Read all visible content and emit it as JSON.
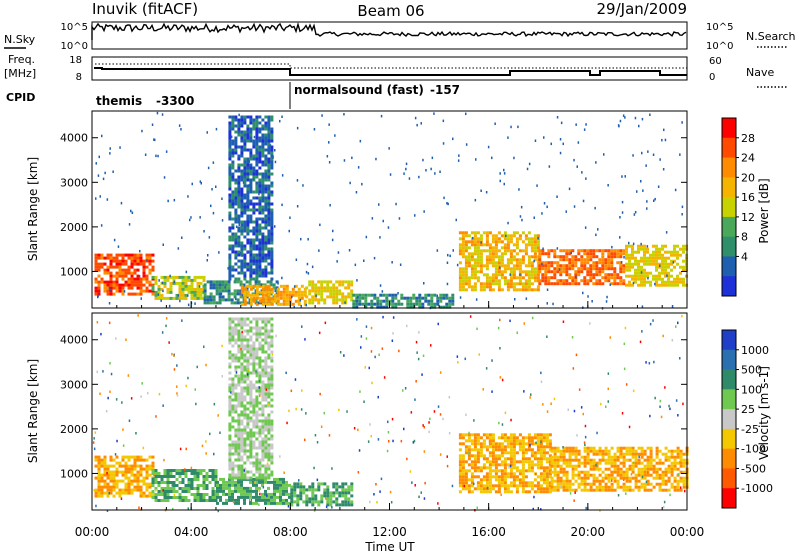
{
  "header": {
    "station": "Inuvik (fitACF)",
    "beam": "Beam 06",
    "date": "29/Jan/2009"
  },
  "noise_panel": {
    "left_label": "N.Sky",
    "right_label": "N.Search",
    "left_ticks": [
      "10^5",
      "10^0"
    ],
    "right_ticks": [
      "10^5",
      "10^0"
    ]
  },
  "freq_panel": {
    "left_label_1": "Freq.",
    "left_label_2": "[MHz]",
    "right_label": "Nave",
    "left_ticks": [
      "18",
      "8"
    ],
    "right_ticks": [
      "60",
      "0"
    ]
  },
  "cpid": {
    "label": "CPID",
    "segments": [
      {
        "name": "themis",
        "id": "-3300",
        "start_hour": 0,
        "end_hour": 8
      },
      {
        "name": "normalsound (fast)",
        "id": "-157",
        "start_hour": 8,
        "end_hour": 24
      }
    ]
  },
  "power_panel": {
    "ylabel": "Slant Range [km]",
    "colorbar_label": "Power [dB]",
    "colorbar_ticks": [
      "28",
      "24",
      "20",
      "16",
      "12",
      "8",
      "4"
    ],
    "colorbar_colors": [
      "#ff0000",
      "#ff4a00",
      "#ff8c00",
      "#f4b400",
      "#c8d200",
      "#4aa85a",
      "#2f8f6a",
      "#1f5fb0",
      "#1e30d8"
    ]
  },
  "velocity_panel": {
    "ylabel": "Slant Range [km]",
    "colorbar_label": "Velocity [m s-1]",
    "colorbar_ticks": [
      "1000",
      "500",
      "100",
      "25",
      "-25",
      "-100",
      "-500",
      "-1000"
    ],
    "colorbar_colors": [
      "#1f3fc8",
      "#2a6fb0",
      "#2f8a6a",
      "#6fc850",
      "#c8c8c8",
      "#f4c800",
      "#ff8c00",
      "#ff5a00",
      "#ff0000"
    ]
  },
  "time_axis": {
    "xlabel": "Time UT",
    "ticks": [
      "00:00",
      "04:00",
      "08:00",
      "12:00",
      "16:00",
      "20:00",
      "00:00"
    ]
  },
  "chart_data": [
    {
      "type": "heatmap",
      "title": "Power",
      "xlabel": "Time UT",
      "ylabel": "Slant Range [km]",
      "xlim_hours": [
        0,
        24
      ],
      "ylim_km": [
        180,
        4600
      ],
      "yticks": [
        1000,
        2000,
        3000,
        4000
      ],
      "colorbar": {
        "label": "Power [dB]",
        "range": [
          0,
          32
        ],
        "ticks": [
          4,
          8,
          12,
          16,
          20,
          24,
          28
        ]
      },
      "regions": [
        {
          "t0": 0.1,
          "t1": 2.4,
          "r0": 500,
          "r1": 1400,
          "level": 28
        },
        {
          "t0": 2.4,
          "t1": 4.5,
          "r0": 400,
          "r1": 900,
          "level": 16
        },
        {
          "t0": 4.5,
          "t1": 7.5,
          "r0": 300,
          "r1": 800,
          "level": 8
        },
        {
          "t0": 5.5,
          "t1": 7.2,
          "r0": 800,
          "r1": 4500,
          "level": 4
        },
        {
          "t0": 6.0,
          "t1": 8.6,
          "r0": 250,
          "r1": 700,
          "level": 22
        },
        {
          "t0": 8.6,
          "t1": 10.5,
          "r0": 300,
          "r1": 800,
          "level": 18
        },
        {
          "t0": 10.5,
          "t1": 14.5,
          "r0": 200,
          "r1": 500,
          "level": 8
        },
        {
          "t0": 14.8,
          "t1": 18.0,
          "r0": 600,
          "r1": 1900,
          "level": 20
        },
        {
          "t0": 18.0,
          "t1": 21.5,
          "r0": 700,
          "r1": 1500,
          "level": 26
        },
        {
          "t0": 21.5,
          "t1": 24.0,
          "r0": 700,
          "r1": 1600,
          "level": 18
        }
      ]
    },
    {
      "type": "heatmap",
      "title": "Velocity",
      "xlabel": "Time UT",
      "ylabel": "Slant Range [km]",
      "xlim_hours": [
        0,
        24
      ],
      "ylim_km": [
        180,
        4600
      ],
      "yticks": [
        1000,
        2000,
        3000,
        4000
      ],
      "colorbar": {
        "label": "Velocity [m s-1]",
        "range": [
          -1000,
          1000
        ],
        "ticks": [
          -1000,
          -500,
          -100,
          -25,
          25,
          100,
          500,
          1000
        ]
      },
      "regions": [
        {
          "t0": 0.1,
          "t1": 2.4,
          "r0": 500,
          "r1": 1400,
          "velocity": -100
        },
        {
          "t0": 2.4,
          "t1": 5.0,
          "r0": 400,
          "r1": 1100,
          "velocity": 100
        },
        {
          "t0": 5.0,
          "t1": 8.0,
          "r0": 300,
          "r1": 900,
          "velocity": 100
        },
        {
          "t0": 5.5,
          "t1": 7.2,
          "r0": 900,
          "r1": 4500,
          "velocity": 25
        },
        {
          "t0": 8.0,
          "t1": 10.5,
          "r0": 300,
          "r1": 800,
          "velocity": 100
        },
        {
          "t0": 14.8,
          "t1": 18.5,
          "r0": 600,
          "r1": 1900,
          "velocity": -100
        },
        {
          "t0": 18.5,
          "t1": 24.0,
          "r0": 600,
          "r1": 1600,
          "velocity": -100
        }
      ]
    }
  ]
}
